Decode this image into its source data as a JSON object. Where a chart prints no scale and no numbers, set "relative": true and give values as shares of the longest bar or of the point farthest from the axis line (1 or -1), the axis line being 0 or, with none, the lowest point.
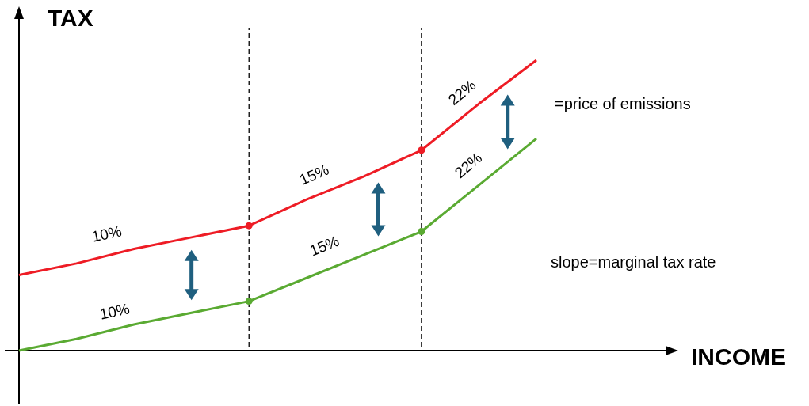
{
  "chart_data": {
    "type": "line",
    "relative": true,
    "ylabel": "TAX",
    "categories": [
      null,
      null,
      null,
      null,
      null,
      null,
      null,
      null,
      null,
      null
    ],
    "line_style": "solid",
    "series": [
      {
        "color": "#ee1c25",
        "values": [
          0.26,
          0.3,
          0.35,
          0.39,
          0.43,
          0.52,
          0.6,
          0.69,
          0.85,
          1.0
        ]
      },
      {
        "color": "#5aaa32",
        "values": [
          0,
          0.04,
          0.09,
          0.13,
          0.17,
          0.25,
          0.33,
          0.41,
          0.57,
          0.73
        ]
      }
    ],
    "annotations": [
      "10%",
      "15%",
      "22%",
      "10%",
      "15%",
      "22%",
      "=price of emissions",
      "slope=marginal tax rate",
      "INCOME"
    ]
  }
}
